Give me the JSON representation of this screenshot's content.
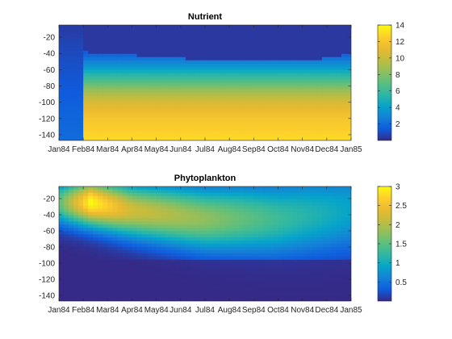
{
  "chart_data": [
    {
      "type": "heatmap",
      "title": "Nutrient",
      "x_tick_labels": [
        "Jan84",
        "Feb84",
        "Mar84",
        "Apr84",
        "May84",
        "Jun84",
        "Jul84",
        "Aug84",
        "Sep84",
        "Oct84",
        "Nov84",
        "Dec84",
        "Jan85"
      ],
      "y_tick_values": [
        -20,
        -40,
        -60,
        -80,
        -100,
        -120,
        -140
      ],
      "xlim": [
        0,
        12
      ],
      "ylim": [
        -147,
        -5
      ],
      "colorbar": {
        "ticks": [
          2,
          4,
          6,
          8,
          10,
          12,
          14
        ],
        "range": [
          0,
          14
        ]
      },
      "depth_profile": [
        {
          "depth": -5,
          "value": 0.5
        },
        {
          "depth": -20,
          "value": 0.6
        },
        {
          "depth": -40,
          "value": 1.5
        },
        {
          "depth": -55,
          "value": 3.5
        },
        {
          "depth": -70,
          "value": 6
        },
        {
          "depth": -85,
          "value": 8.5
        },
        {
          "depth": -100,
          "value": 10.5
        },
        {
          "depth": -120,
          "value": 12
        },
        {
          "depth": -147,
          "value": 13
        }
      ],
      "depleted_layer_bottom": [
        {
          "month": 0,
          "depth": -5
        },
        {
          "month": 0.9,
          "depth": -5
        },
        {
          "month": 1,
          "depth": -38
        },
        {
          "month": 3,
          "depth": -42
        },
        {
          "month": 6,
          "depth": -48
        },
        {
          "month": 9,
          "depth": -50
        },
        {
          "month": 11,
          "depth": -46
        },
        {
          "month": 12,
          "depth": -40
        }
      ],
      "surface_mixed_months": [
        0,
        0.9
      ]
    },
    {
      "type": "heatmap",
      "title": "Phytoplankton",
      "x_tick_labels": [
        "Jan84",
        "Feb84",
        "Mar84",
        "Apr84",
        "May84",
        "Jun84",
        "Jul84",
        "Aug84",
        "Sep84",
        "Oct84",
        "Nov84",
        "Dec84",
        "Jan85"
      ],
      "y_tick_values": [
        -20,
        -40,
        -60,
        -80,
        -100,
        -120,
        -140
      ],
      "xlim": [
        0,
        12
      ],
      "ylim": [
        -147,
        -5
      ],
      "colorbar": {
        "ticks": [
          0.5,
          1,
          1.5,
          2,
          2.5,
          3
        ],
        "range": [
          0,
          3
        ]
      },
      "bloom_peak": {
        "month": 1.3,
        "depth": -25,
        "value": 3
      },
      "subsurface_max": [
        {
          "month": 0,
          "depth": -25,
          "value": 1.5
        },
        {
          "month": 1.3,
          "depth": -25,
          "value": 3
        },
        {
          "month": 3,
          "depth": -35,
          "value": 2.2
        },
        {
          "month": 6,
          "depth": -45,
          "value": 1.8
        },
        {
          "month": 9,
          "depth": -45,
          "value": 1.3
        },
        {
          "month": 12,
          "depth": -35,
          "value": 0.9
        }
      ]
    }
  ]
}
